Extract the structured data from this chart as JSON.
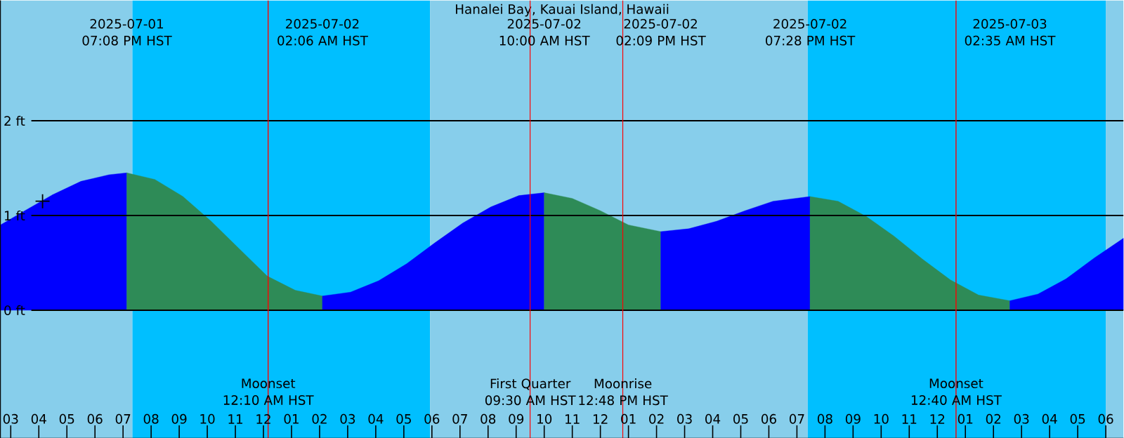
{
  "chart_data": {
    "type": "area",
    "title": "Hanalei Bay, Kauai Island, Hawaii",
    "xlim": [
      "2025-07-01T14:38",
      "2025-07-03T06:38"
    ],
    "ylim": [
      -1.35,
      3.27
    ],
    "xticks": [
      {
        "value": "2025-07-01T15:00",
        "label": "03"
      },
      {
        "value": "2025-07-01T16:00",
        "label": "04"
      },
      {
        "value": "2025-07-01T17:00",
        "label": "05"
      },
      {
        "value": "2025-07-01T18:00",
        "label": "06"
      },
      {
        "value": "2025-07-01T19:00",
        "label": "07"
      },
      {
        "value": "2025-07-01T20:00",
        "label": "08"
      },
      {
        "value": "2025-07-01T21:00",
        "label": "09"
      },
      {
        "value": "2025-07-01T22:00",
        "label": "10"
      },
      {
        "value": "2025-07-01T23:00",
        "label": "11"
      },
      {
        "value": "2025-07-02T00:00",
        "label": "12"
      },
      {
        "value": "2025-07-02T01:00",
        "label": "01"
      },
      {
        "value": "2025-07-02T02:00",
        "label": "02"
      },
      {
        "value": "2025-07-02T03:00",
        "label": "03"
      },
      {
        "value": "2025-07-02T04:00",
        "label": "04"
      },
      {
        "value": "2025-07-02T05:00",
        "label": "05"
      },
      {
        "value": "2025-07-02T06:00",
        "label": "06"
      },
      {
        "value": "2025-07-02T07:00",
        "label": "07"
      },
      {
        "value": "2025-07-02T08:00",
        "label": "08"
      },
      {
        "value": "2025-07-02T09:00",
        "label": "09"
      },
      {
        "value": "2025-07-02T10:00",
        "label": "10"
      },
      {
        "value": "2025-07-02T11:00",
        "label": "11"
      },
      {
        "value": "2025-07-02T12:00",
        "label": "12"
      },
      {
        "value": "2025-07-02T13:00",
        "label": "01"
      },
      {
        "value": "2025-07-02T14:00",
        "label": "02"
      },
      {
        "value": "2025-07-02T15:00",
        "label": "03"
      },
      {
        "value": "2025-07-02T16:00",
        "label": "04"
      },
      {
        "value": "2025-07-02T17:00",
        "label": "05"
      },
      {
        "value": "2025-07-02T18:00",
        "label": "06"
      },
      {
        "value": "2025-07-02T19:00",
        "label": "07"
      },
      {
        "value": "2025-07-02T20:00",
        "label": "08"
      },
      {
        "value": "2025-07-02T21:00",
        "label": "09"
      },
      {
        "value": "2025-07-02T22:00",
        "label": "10"
      },
      {
        "value": "2025-07-02T23:00",
        "label": "11"
      },
      {
        "value": "2025-07-03T00:00",
        "label": "12"
      },
      {
        "value": "2025-07-03T01:00",
        "label": "01"
      },
      {
        "value": "2025-07-03T02:00",
        "label": "02"
      },
      {
        "value": "2025-07-03T03:00",
        "label": "03"
      },
      {
        "value": "2025-07-03T04:00",
        "label": "04"
      },
      {
        "value": "2025-07-03T05:00",
        "label": "05"
      },
      {
        "value": "2025-07-03T06:00",
        "label": "06"
      }
    ],
    "yticks": [
      {
        "value": 0,
        "label": "0 ft"
      },
      {
        "value": 1,
        "label": "1 ft"
      },
      {
        "value": 2,
        "label": "2 ft"
      }
    ],
    "grid": "y",
    "bands": [
      {
        "axis": "x",
        "from": "2025-07-01T14:38",
        "to": "2025-07-01T19:20",
        "color": "#87ceeb"
      },
      {
        "axis": "x",
        "from": "2025-07-01T19:20",
        "to": "2025-07-02T05:56",
        "color": "#00bfff"
      },
      {
        "axis": "x",
        "from": "2025-07-02T05:56",
        "to": "2025-07-02T19:23",
        "color": "#87ceeb"
      },
      {
        "axis": "x",
        "from": "2025-07-02T19:23",
        "to": "2025-07-03T06:00",
        "color": "#00bfff"
      },
      {
        "axis": "x",
        "from": "2025-07-03T06:00",
        "to": "2025-07-03T06:38",
        "color": "#87ceeb"
      }
    ],
    "series": [
      {
        "color": "#0000ff",
        "x": [
          "2025-07-01T14:38",
          "2025-07-01T15:30",
          "2025-07-01T16:30",
          "2025-07-01T17:30",
          "2025-07-01T18:30",
          "2025-07-01T19:08"
        ],
        "values": [
          0.9,
          1.05,
          1.22,
          1.36,
          1.43,
          1.45
        ]
      },
      {
        "color": "#2e8b57",
        "x": [
          "2025-07-01T19:08",
          "2025-07-01T20:08",
          "2025-07-01T21:08",
          "2025-07-01T22:08",
          "2025-07-01T23:08",
          "2025-07-02T00:08",
          "2025-07-02T01:08",
          "2025-07-02T02:06"
        ],
        "values": [
          1.45,
          1.38,
          1.2,
          0.94,
          0.65,
          0.36,
          0.21,
          0.15
        ]
      },
      {
        "color": "#0000ff",
        "x": [
          "2025-07-02T02:06",
          "2025-07-02T03:06",
          "2025-07-02T04:06",
          "2025-07-02T05:06",
          "2025-07-02T06:06",
          "2025-07-02T07:06",
          "2025-07-02T08:06",
          "2025-07-02T09:06",
          "2025-07-02T10:00"
        ],
        "values": [
          0.15,
          0.19,
          0.31,
          0.49,
          0.71,
          0.92,
          1.09,
          1.21,
          1.24
        ]
      },
      {
        "color": "#2e8b57",
        "x": [
          "2025-07-02T10:00",
          "2025-07-02T11:00",
          "2025-07-02T12:00",
          "2025-07-02T13:00",
          "2025-07-02T14:09"
        ],
        "values": [
          1.24,
          1.18,
          1.05,
          0.9,
          0.83
        ]
      },
      {
        "color": "#0000ff",
        "x": [
          "2025-07-02T14:09",
          "2025-07-02T15:09",
          "2025-07-02T16:09",
          "2025-07-02T17:09",
          "2025-07-02T18:09",
          "2025-07-02T19:28"
        ],
        "values": [
          0.83,
          0.86,
          0.94,
          1.05,
          1.15,
          1.2
        ]
      },
      {
        "color": "#2e8b57",
        "x": [
          "2025-07-02T19:28",
          "2025-07-02T20:28",
          "2025-07-02T21:28",
          "2025-07-02T22:28",
          "2025-07-02T23:28",
          "2025-07-03T00:28",
          "2025-07-03T01:28",
          "2025-07-03T02:35"
        ],
        "values": [
          1.2,
          1.15,
          0.99,
          0.78,
          0.54,
          0.32,
          0.16,
          0.1
        ]
      },
      {
        "color": "#0000ff",
        "x": [
          "2025-07-03T02:35",
          "2025-07-03T03:35",
          "2025-07-03T04:35",
          "2025-07-03T05:35",
          "2025-07-03T06:38"
        ],
        "values": [
          0.1,
          0.17,
          0.33,
          0.55,
          0.76
        ]
      },
      {
        "type": "scatter",
        "marker": "cross",
        "color": "#000000",
        "x": [
          "2025-07-01T16:08"
        ],
        "values": [
          1.15
        ]
      }
    ],
    "x2lim": [
      "2025-07-01T14:38",
      "2025-07-03T06:38"
    ],
    "x2ticks": [
      {
        "value": "2025-07-01T19:08",
        "label": "2025-07-01 07:08 PM HST"
      },
      {
        "value": "2025-07-02T02:06",
        "label": "2025-07-02 02:06 AM HST"
      },
      {
        "value": "2025-07-02T10:00",
        "label": "2025-07-02 10:00 AM HST"
      },
      {
        "value": "2025-07-02T14:09",
        "label": "2025-07-02 02:09 PM HST"
      },
      {
        "value": "2025-07-02T19:28",
        "label": "2025-07-02 07:28 PM HST"
      },
      {
        "value": "2025-07-03T02:35",
        "label": "2025-07-03 02:35 AM HST"
      }
    ],
    "ref_lines": [
      {
        "axis": "x",
        "value": "2025-07-02T00:10",
        "label": "Moonset 12:10 AM HST",
        "color": "#ff0000"
      },
      {
        "axis": "x",
        "value": "2025-07-02T09:30",
        "label": "First Quarter 09:30 AM HST",
        "color": "#ff0000"
      },
      {
        "axis": "x",
        "value": "2025-07-02T12:48",
        "label": "Moonrise 12:48 PM HST",
        "color": "#ff0000"
      },
      {
        "axis": "x",
        "value": "2025-07-03T00:40",
        "label": "Moonset 12:40 AM HST",
        "color": "#ff0000"
      }
    ]
  }
}
